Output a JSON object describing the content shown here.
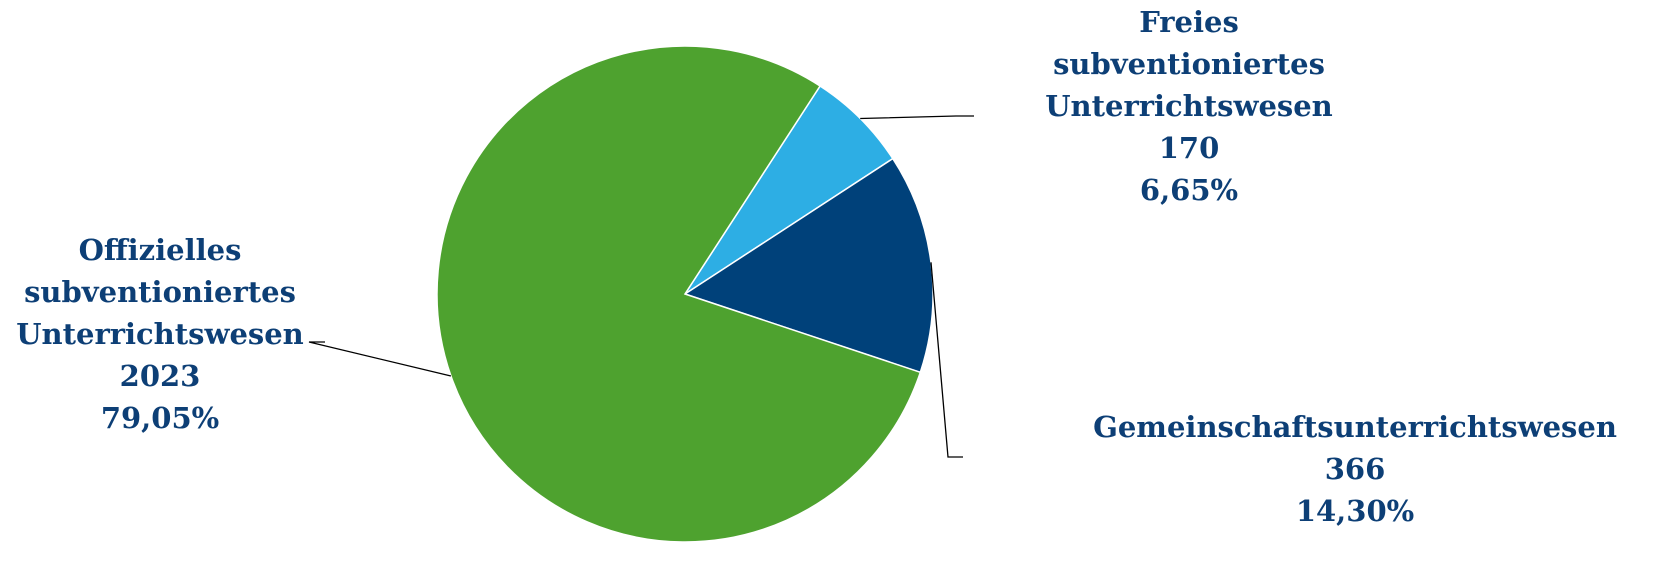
{
  "chart_data": {
    "type": "pie",
    "title": "",
    "start_angle_deg": 57,
    "direction": "clockwise",
    "slices": [
      {
        "label_lines": [
          "Freies",
          "subventioniertes",
          "Unterrichtswesen"
        ],
        "value": 170,
        "value_text": "170",
        "percent": 6.65,
        "percent_text": "6,65%",
        "color": "#2daee4"
      },
      {
        "label_lines": [
          "Gemeinschaftsunterrichtswesen"
        ],
        "value": 366,
        "value_text": "366",
        "percent": 14.3,
        "percent_text": "14,30%",
        "color": "#00417a"
      },
      {
        "label_lines": [
          "Offizielles",
          "subventioniertes",
          "Unterrichtswesen"
        ],
        "value": 2023,
        "value_text": "2023",
        "percent": 79.05,
        "percent_text": "79,05%",
        "color": "#4ea22f"
      }
    ],
    "label_color": "#0d3f76",
    "leader_color": "#000000"
  }
}
